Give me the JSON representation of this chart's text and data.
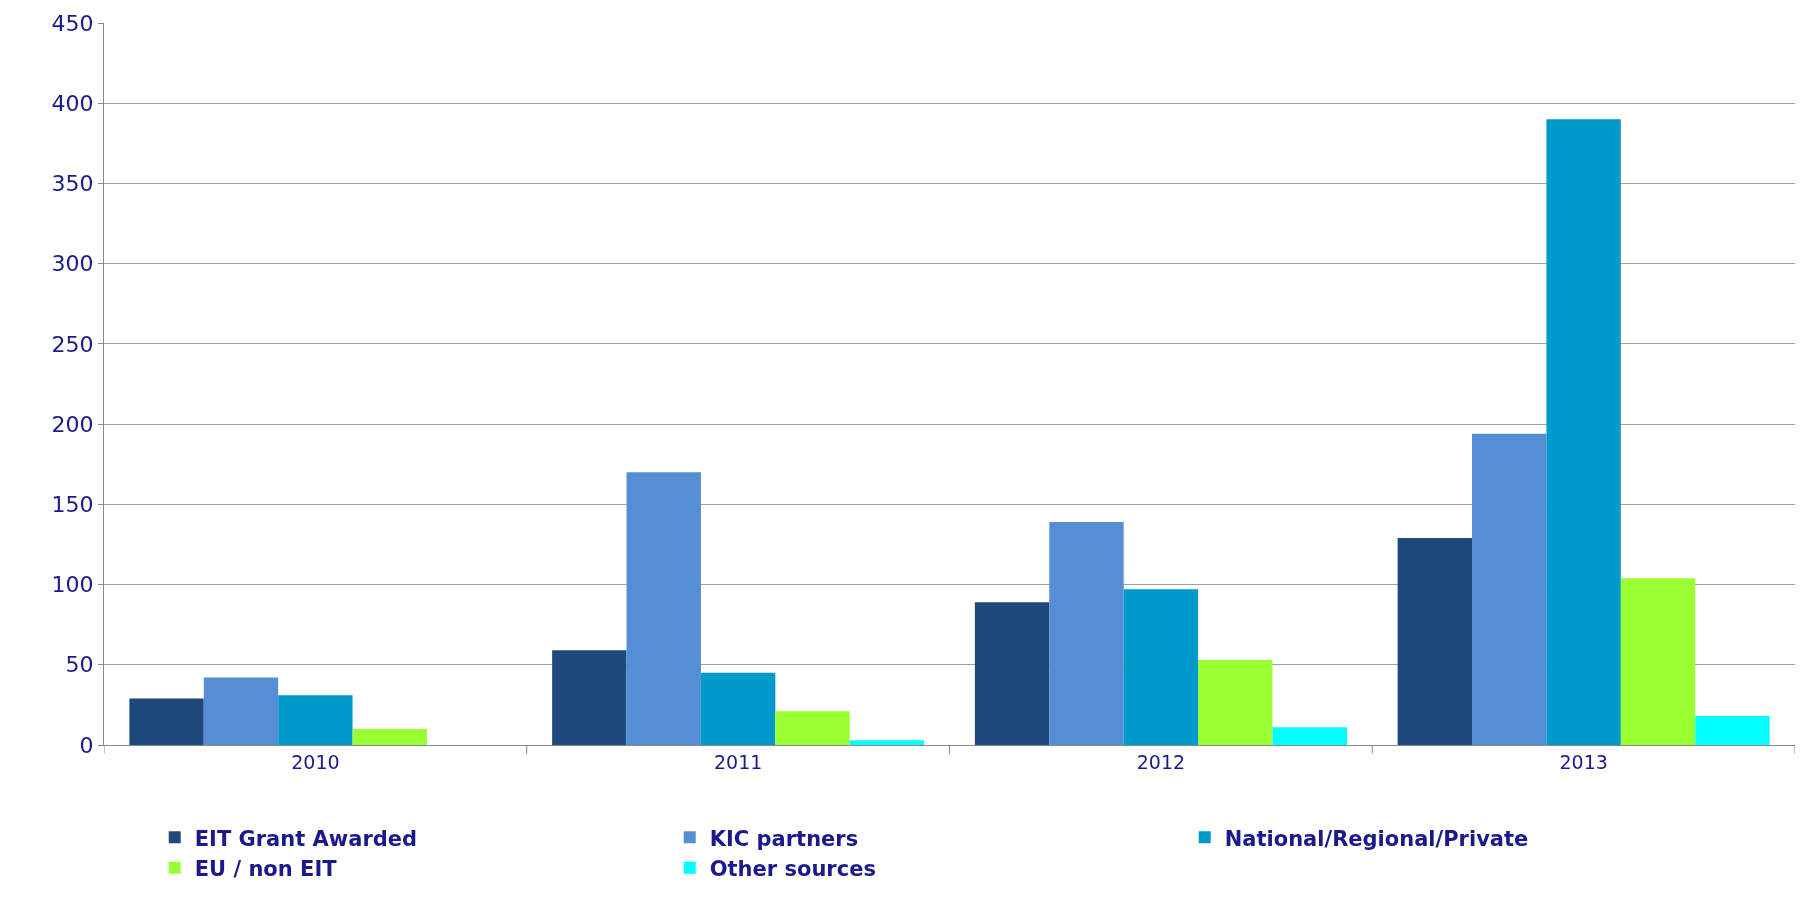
{
  "chart_data": {
    "type": "bar",
    "categories": [
      "2010",
      "2011",
      "2012",
      "2013"
    ],
    "series": [
      {
        "name": "EIT Grant Awarded",
        "color": "#1f497d",
        "values": [
          29,
          59,
          89,
          129
        ]
      },
      {
        "name": "KIC partners",
        "color": "#558ed5",
        "values": [
          42,
          170,
          139,
          194
        ]
      },
      {
        "name": "National/Regional/Private",
        "color": "#0099cc",
        "values": [
          31,
          45,
          97,
          390
        ]
      },
      {
        "name": "EU / non EIT",
        "color": "#99ff33",
        "values": [
          10,
          21,
          53,
          104
        ]
      },
      {
        "name": "Other sources",
        "color": "#00ffff",
        "values": [
          null,
          3,
          11,
          18
        ]
      }
    ],
    "ylim": [
      0,
      450
    ],
    "yticks": [
      0,
      50,
      100,
      150,
      200,
      250,
      300,
      350,
      400,
      450
    ],
    "grid": "y",
    "legend": "bottom"
  }
}
